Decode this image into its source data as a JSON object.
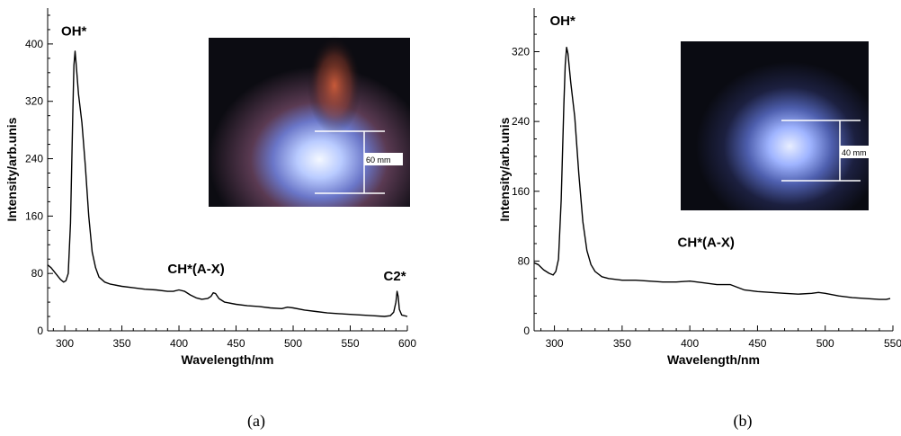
{
  "chart_data": [
    {
      "type": "line",
      "caption": "(a)",
      "xlabel": "Wavelength/nm",
      "ylabel": "Intensity/arb.unis",
      "xlim": [
        285,
        600
      ],
      "ylim": [
        0,
        450
      ],
      "xticks": [
        300,
        350,
        400,
        450,
        500,
        550,
        600
      ],
      "yticks": [
        0,
        80,
        160,
        240,
        320,
        400
      ],
      "annotations": [
        {
          "text": "OH*",
          "x": 308,
          "y": 402
        },
        {
          "text": "CH*(A-X)",
          "x": 415,
          "y": 70
        },
        {
          "text": "C2*",
          "x": 589,
          "y": 60
        }
      ],
      "inset": {
        "scale_label": "60 mm"
      },
      "series": [
        {
          "points": [
            [
              285,
              92
            ],
            [
              288,
              88
            ],
            [
              292,
              80
            ],
            [
              296,
              72
            ],
            [
              299,
              68
            ],
            [
              301,
              70
            ],
            [
              303,
              80
            ],
            [
              305,
              150
            ],
            [
              307,
              300
            ],
            [
              308,
              370
            ],
            [
              309,
              390
            ],
            [
              310,
              372
            ],
            [
              312,
              330
            ],
            [
              315,
              290
            ],
            [
              318,
              230
            ],
            [
              321,
              160
            ],
            [
              324,
              110
            ],
            [
              327,
              88
            ],
            [
              330,
              75
            ],
            [
              335,
              68
            ],
            [
              340,
              65
            ],
            [
              350,
              62
            ],
            [
              360,
              60
            ],
            [
              370,
              58
            ],
            [
              380,
              57
            ],
            [
              390,
              55
            ],
            [
              395,
              55
            ],
            [
              400,
              57
            ],
            [
              405,
              55
            ],
            [
              410,
              50
            ],
            [
              415,
              46
            ],
            [
              420,
              44
            ],
            [
              425,
              45
            ],
            [
              428,
              48
            ],
            [
              430,
              53
            ],
            [
              432,
              52
            ],
            [
              435,
              45
            ],
            [
              440,
              40
            ],
            [
              450,
              37
            ],
            [
              460,
              35
            ],
            [
              470,
              34
            ],
            [
              480,
              32
            ],
            [
              490,
              31
            ],
            [
              495,
              33
            ],
            [
              500,
              32
            ],
            [
              510,
              29
            ],
            [
              520,
              27
            ],
            [
              530,
              25
            ],
            [
              540,
              24
            ],
            [
              550,
              23
            ],
            [
              560,
              22
            ],
            [
              570,
              21
            ],
            [
              580,
              20
            ],
            [
              585,
              21
            ],
            [
              588,
              26
            ],
            [
              590,
              40
            ],
            [
              591,
              55
            ],
            [
              592,
              48
            ],
            [
              593,
              30
            ],
            [
              595,
              22
            ],
            [
              600,
              20
            ]
          ]
        }
      ]
    },
    {
      "type": "line",
      "caption": "(b)",
      "xlabel": "Wavelength/nm",
      "ylabel": "Intensity/arb.unis",
      "xlim": [
        285,
        550
      ],
      "ylim": [
        0,
        370
      ],
      "xticks": [
        300,
        350,
        400,
        450,
        500,
        550
      ],
      "yticks": [
        0,
        80,
        160,
        240,
        320
      ],
      "annotations": [
        {
          "text": "OH*",
          "x": 306,
          "y": 342
        },
        {
          "text": "CH*(A-X)",
          "x": 412,
          "y": 88
        }
      ],
      "inset": {
        "scale_label": "40 mm"
      },
      "series": [
        {
          "points": [
            [
              285,
              78
            ],
            [
              288,
              76
            ],
            [
              292,
              70
            ],
            [
              296,
              66
            ],
            [
              299,
              64
            ],
            [
              301,
              68
            ],
            [
              303,
              82
            ],
            [
              305,
              150
            ],
            [
              307,
              260
            ],
            [
              308,
              305
            ],
            [
              309,
              325
            ],
            [
              310,
              318
            ],
            [
              312,
              285
            ],
            [
              315,
              245
            ],
            [
              318,
              180
            ],
            [
              321,
              125
            ],
            [
              324,
              92
            ],
            [
              327,
              76
            ],
            [
              330,
              68
            ],
            [
              335,
              62
            ],
            [
              340,
              60
            ],
            [
              350,
              58
            ],
            [
              360,
              58
            ],
            [
              370,
              57
            ],
            [
              380,
              56
            ],
            [
              390,
              56
            ],
            [
              400,
              57
            ],
            [
              410,
              55
            ],
            [
              420,
              53
            ],
            [
              430,
              53
            ],
            [
              435,
              50
            ],
            [
              440,
              47
            ],
            [
              450,
              45
            ],
            [
              460,
              44
            ],
            [
              470,
              43
            ],
            [
              480,
              42
            ],
            [
              490,
              43
            ],
            [
              495,
              44
            ],
            [
              500,
              43
            ],
            [
              510,
              40
            ],
            [
              520,
              38
            ],
            [
              530,
              37
            ],
            [
              540,
              36
            ],
            [
              545,
              36
            ],
            [
              548,
              37
            ]
          ]
        }
      ]
    }
  ]
}
